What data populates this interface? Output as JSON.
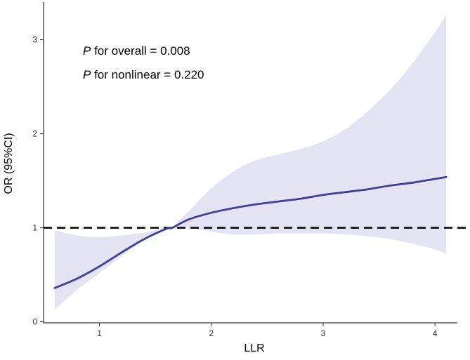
{
  "chart_data": {
    "type": "line",
    "xlabel": "LLR",
    "ylabel": "OR (95%CI)",
    "xlim": [
      0.5,
      4.2
    ],
    "ylim": [
      -0.01,
      3.4
    ],
    "x_ticks": [
      1,
      2,
      3,
      4
    ],
    "y_ticks": [
      0,
      1,
      2,
      3
    ],
    "reference_line": {
      "y": 1,
      "style": "dashed",
      "color": "#000000"
    },
    "series": [
      {
        "color": "#3f3f98",
        "x": [
          0.6,
          0.8,
          1.0,
          1.2,
          1.4,
          1.6,
          1.65,
          1.8,
          2.0,
          2.2,
          2.4,
          2.6,
          2.8,
          3.0,
          3.2,
          3.4,
          3.6,
          3.8,
          4.0,
          4.1
        ],
        "y": [
          0.36,
          0.46,
          0.59,
          0.74,
          0.88,
          0.99,
          1.0,
          1.09,
          1.16,
          1.21,
          1.25,
          1.28,
          1.31,
          1.35,
          1.38,
          1.41,
          1.45,
          1.48,
          1.52,
          1.54
        ],
        "lower": [
          0.13,
          0.34,
          0.52,
          0.7,
          0.87,
          0.99,
          1.0,
          1.0,
          0.96,
          0.93,
          0.93,
          0.94,
          0.94,
          0.94,
          0.93,
          0.91,
          0.88,
          0.83,
          0.77,
          0.73
        ],
        "upper": [
          0.97,
          0.92,
          0.9,
          0.92,
          0.95,
          1.0,
          1.01,
          1.18,
          1.42,
          1.6,
          1.72,
          1.78,
          1.84,
          1.92,
          2.05,
          2.24,
          2.47,
          2.75,
          3.08,
          3.26
        ]
      }
    ],
    "band_color": "#e3e3f3"
  },
  "annotations": {
    "overall": {
      "p": "P",
      "rest": " for overall = 0.008"
    },
    "nonlinear": {
      "p": "P",
      "rest": " for nonlinear = 0.220"
    }
  }
}
